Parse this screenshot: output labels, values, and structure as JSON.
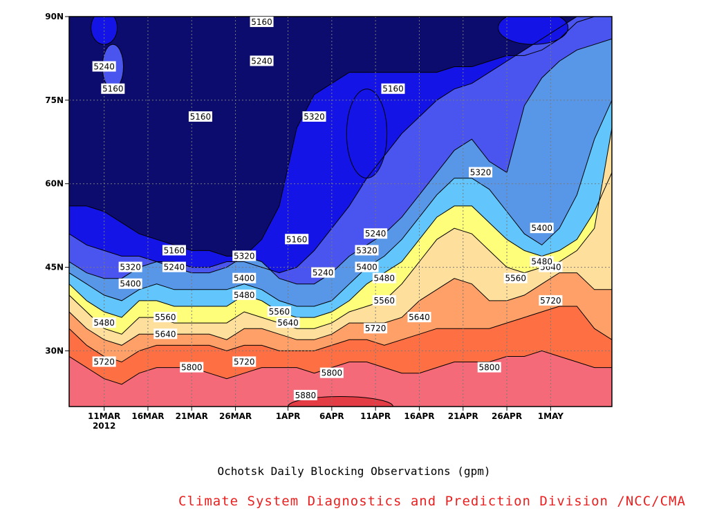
{
  "chart_data": {
    "type": "heatmap",
    "subtype": "filled-contour",
    "title": "Ochotsk Daily Blocking Observations (gpm)",
    "credit": "Climate System Diagnostics and Prediction Division /NCC/CMA",
    "x_start": "2012-03-07",
    "x_end": "2012-05-08",
    "x_ticks": [
      {
        "label": "11MAR",
        "date": "2012-03-11",
        "sub": "2012"
      },
      {
        "label": "16MAR",
        "date": "2012-03-16"
      },
      {
        "label": "21MAR",
        "date": "2012-03-21"
      },
      {
        "label": "26MAR",
        "date": "2012-03-26"
      },
      {
        "label": "1APR",
        "date": "2012-04-01"
      },
      {
        "label": "6APR",
        "date": "2012-04-06"
      },
      {
        "label": "11APR",
        "date": "2012-04-11"
      },
      {
        "label": "16APR",
        "date": "2012-04-16"
      },
      {
        "label": "21APR",
        "date": "2012-04-21"
      },
      {
        "label": "26APR",
        "date": "2012-04-26"
      },
      {
        "label": "1MAY",
        "date": "2012-05-01"
      }
    ],
    "ylim": [
      20,
      90
    ],
    "y_ticks": [
      {
        "label": "30N",
        "value": 30
      },
      {
        "label": "45N",
        "value": 45
      },
      {
        "label": "60N",
        "value": 60
      },
      {
        "label": "75N",
        "value": 75
      },
      {
        "label": "90N",
        "value": 90
      }
    ],
    "grid": true,
    "grid_style": "dotted",
    "contour_levels": [
      5160,
      5240,
      5320,
      5400,
      5480,
      5560,
      5640,
      5720,
      5800,
      5880
    ],
    "fill_colors": [
      "#0c0c6e",
      "#1414e6",
      "#4a54ee",
      "#5896e8",
      "#62c6fc",
      "#fefe7a",
      "#fee09c",
      "#fea068",
      "#fe7044",
      "#f46a78",
      "#e43c44"
    ],
    "boundary_lat": [
      {
        "level": 5160,
        "lat": [
          56,
          56,
          55,
          53,
          51,
          50,
          49,
          48,
          48,
          47,
          47,
          50,
          56,
          70,
          76,
          78,
          80,
          80,
          80,
          80,
          80,
          80,
          81,
          81,
          82,
          83,
          83,
          84,
          86,
          89,
          90,
          90
        ]
      },
      {
        "level": 5240,
        "lat": [
          51,
          49,
          48,
          47,
          47,
          46,
          46,
          45,
          45,
          46,
          46,
          45,
          44,
          45,
          48,
          52,
          56,
          61,
          65,
          69,
          72,
          75,
          77,
          78,
          80,
          82,
          84,
          86,
          88,
          90,
          90,
          90
        ]
      },
      {
        "level": 5320,
        "lat": [
          46,
          44,
          43,
          43,
          45,
          46,
          45,
          44,
          44,
          45,
          47,
          46,
          43,
          42,
          42,
          44,
          47,
          49,
          51,
          54,
          58,
          62,
          66,
          68,
          64,
          62,
          74,
          79,
          82,
          84,
          85,
          86
        ]
      },
      {
        "level": 5400,
        "lat": [
          44,
          42,
          40,
          39,
          41,
          42,
          41,
          41,
          41,
          41,
          42,
          41,
          39,
          38,
          38,
          39,
          42,
          45,
          47,
          50,
          54,
          58,
          61,
          61,
          59,
          55,
          51,
          49,
          52,
          58,
          68,
          75
        ]
      },
      {
        "level": 5480,
        "lat": [
          42,
          39,
          37,
          36,
          39,
          39,
          38,
          38,
          38,
          38,
          40,
          39,
          37,
          36,
          36,
          37,
          39,
          42,
          44,
          46,
          50,
          54,
          56,
          56,
          53,
          50,
          48,
          47,
          48,
          50,
          55,
          62
        ]
      },
      {
        "level": 5560,
        "lat": [
          40,
          37,
          34,
          33,
          36,
          36,
          35,
          35,
          35,
          35,
          37,
          36,
          35,
          34,
          34,
          35,
          37,
          38,
          39,
          42,
          46,
          50,
          52,
          51,
          48,
          45,
          44,
          45,
          46,
          48,
          52,
          70
        ]
      },
      {
        "level": 5640,
        "lat": [
          37,
          34,
          32,
          31,
          33,
          33,
          33,
          33,
          33,
          32,
          34,
          34,
          33,
          32,
          32,
          33,
          35,
          35,
          35,
          36,
          39,
          41,
          43,
          42,
          39,
          39,
          40,
          42,
          44,
          44,
          41,
          41
        ]
      },
      {
        "level": 5720,
        "lat": [
          34,
          31,
          29,
          28,
          30,
          31,
          31,
          31,
          31,
          30,
          31,
          31,
          30,
          30,
          30,
          31,
          32,
          32,
          31,
          32,
          33,
          34,
          34,
          34,
          34,
          35,
          36,
          37,
          38,
          38,
          34,
          32
        ]
      },
      {
        "level": 5800,
        "lat": [
          29,
          27,
          25,
          24,
          26,
          27,
          27,
          27,
          26,
          25,
          26,
          27,
          27,
          27,
          26,
          27,
          28,
          28,
          27,
          26,
          26,
          27,
          28,
          28,
          28,
          29,
          29,
          30,
          29,
          28,
          27,
          27
        ]
      }
    ],
    "boundary_dates": [
      "2012-03-07",
      "2012-03-09",
      "2012-03-11",
      "2012-03-13",
      "2012-03-15",
      "2012-03-17",
      "2012-03-19",
      "2012-03-21",
      "2012-03-23",
      "2012-03-25",
      "2012-03-27",
      "2012-03-29",
      "2012-03-31",
      "2012-04-02",
      "2012-04-04",
      "2012-04-06",
      "2012-04-08",
      "2012-04-10",
      "2012-04-12",
      "2012-04-14",
      "2012-04-16",
      "2012-04-18",
      "2012-04-20",
      "2012-04-22",
      "2012-04-24",
      "2012-04-26",
      "2012-04-28",
      "2012-04-30",
      "2012-05-02",
      "2012-05-04",
      "2012-05-06",
      "2012-05-08"
    ],
    "patches": [
      {
        "level": 5240,
        "kind": "ellipse",
        "date": "2012-03-12",
        "lat": 81,
        "dlat": 4,
        "ddays": 1.2
      },
      {
        "level": 5160,
        "kind": "ellipse",
        "date": "2012-04-10",
        "lat": 69,
        "dlat": 8,
        "ddays": 2.3
      },
      {
        "level": 5880,
        "kind": "ellipse",
        "date": "2012-04-07",
        "lat": 20,
        "dlat": 1.8,
        "ddays": 6
      },
      {
        "level": 5160,
        "kind": "ellipse",
        "date": "2012-03-11",
        "lat": 88,
        "dlat": 3,
        "ddays": 1.5
      },
      {
        "level": 5160,
        "kind": "ellipse",
        "date": "2012-04-29",
        "lat": 88,
        "dlat": 3,
        "ddays": 4
      }
    ],
    "labels": [
      {
        "text": "5240",
        "date": "2012-03-11",
        "lat": 81
      },
      {
        "text": "5160",
        "date": "2012-03-12",
        "lat": 77
      },
      {
        "text": "5160",
        "date": "2012-03-29",
        "lat": 89
      },
      {
        "text": "5240",
        "date": "2012-03-29",
        "lat": 82
      },
      {
        "text": "5160",
        "date": "2012-03-22",
        "lat": 72
      },
      {
        "text": "5320",
        "date": "2012-04-04",
        "lat": 72
      },
      {
        "text": "5160",
        "date": "2012-04-13",
        "lat": 77
      },
      {
        "text": "5320",
        "date": "2012-04-23",
        "lat": 62
      },
      {
        "text": "5400",
        "date": "2012-04-30",
        "lat": 52
      },
      {
        "text": "5240",
        "date": "2012-04-11",
        "lat": 51
      },
      {
        "text": "5160",
        "date": "2012-04-02",
        "lat": 50
      },
      {
        "text": "5320",
        "date": "2012-04-10",
        "lat": 48
      },
      {
        "text": "5400",
        "date": "2012-04-10",
        "lat": 45
      },
      {
        "text": "5480",
        "date": "2012-04-12",
        "lat": 43
      },
      {
        "text": "5560",
        "date": "2012-04-12",
        "lat": 39
      },
      {
        "text": "5640",
        "date": "2012-04-16",
        "lat": 36
      },
      {
        "text": "5720",
        "date": "2012-04-11",
        "lat": 34
      },
      {
        "text": "5800",
        "date": "2012-04-06",
        "lat": 26
      },
      {
        "text": "5880",
        "date": "2012-04-03",
        "lat": 22
      },
      {
        "text": "5800",
        "date": "2012-04-24",
        "lat": 27
      },
      {
        "text": "5720",
        "date": "2012-05-01",
        "lat": 39
      },
      {
        "text": "5640",
        "date": "2012-05-01",
        "lat": 45
      },
      {
        "text": "5560",
        "date": "2012-04-27",
        "lat": 43
      },
      {
        "text": "5480",
        "date": "2012-04-30",
        "lat": 46
      },
      {
        "text": "5160",
        "date": "2012-03-19",
        "lat": 48
      },
      {
        "text": "5320",
        "date": "2012-03-14",
        "lat": 45
      },
      {
        "text": "5240",
        "date": "2012-03-19",
        "lat": 45
      },
      {
        "text": "5400",
        "date": "2012-03-14",
        "lat": 42
      },
      {
        "text": "5560",
        "date": "2012-03-18",
        "lat": 36
      },
      {
        "text": "5640",
        "date": "2012-03-18",
        "lat": 33
      },
      {
        "text": "5480",
        "date": "2012-03-11",
        "lat": 35
      },
      {
        "text": "5720",
        "date": "2012-03-11",
        "lat": 28
      },
      {
        "text": "5800",
        "date": "2012-03-21",
        "lat": 27
      },
      {
        "text": "5720",
        "date": "2012-03-27",
        "lat": 28
      },
      {
        "text": "5320",
        "date": "2012-03-27",
        "lat": 47
      },
      {
        "text": "5400",
        "date": "2012-03-27",
        "lat": 43
      },
      {
        "text": "5480",
        "date": "2012-03-27",
        "lat": 40
      },
      {
        "text": "5560",
        "date": "2012-03-31",
        "lat": 37
      },
      {
        "text": "5640",
        "date": "2012-04-01",
        "lat": 35
      },
      {
        "text": "5240",
        "date": "2012-04-05",
        "lat": 44
      }
    ]
  }
}
